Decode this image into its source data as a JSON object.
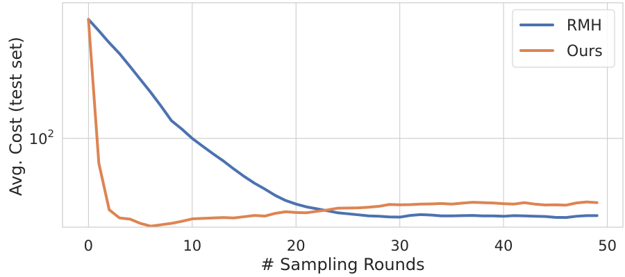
{
  "chart_data": {
    "type": "line",
    "title": "",
    "xlabel": "# Sampling Rounds",
    "ylabel": "Avg. Cost (test set)",
    "yscale": "log",
    "xlim": [
      -2.5,
      51.5
    ],
    "ylim": [
      34,
      520
    ],
    "grid": true,
    "legend_position": "top-right",
    "x_ticks": [
      0,
      10,
      20,
      30,
      40,
      50
    ],
    "y_ticks": [
      {
        "value": 100,
        "base": "10",
        "exp": "2"
      }
    ],
    "x": [
      0,
      1,
      2,
      3,
      4,
      5,
      6,
      7,
      8,
      9,
      10,
      11,
      12,
      13,
      14,
      15,
      16,
      17,
      18,
      19,
      20,
      21,
      22,
      23,
      24,
      25,
      26,
      27,
      28,
      29,
      30,
      31,
      32,
      33,
      34,
      35,
      36,
      37,
      38,
      39,
      40,
      41,
      42,
      43,
      44,
      45,
      46,
      47,
      48,
      49
    ],
    "series": [
      {
        "name": "RMH",
        "color": "#4c72b0",
        "values": [
          425,
          370,
          320,
          280,
          240,
          205,
          175,
          148,
          124,
          112,
          100,
          91,
          83,
          76,
          69,
          63,
          58,
          54,
          50,
          47,
          45,
          43.5,
          42.5,
          41.5,
          40.5,
          40,
          39.5,
          39,
          38.8,
          38.5,
          38.4,
          39.2,
          39.6,
          39.4,
          39.0,
          39.0,
          39.1,
          39.2,
          39.0,
          39.0,
          38.8,
          39.1,
          39.0,
          38.8,
          38.7,
          38.3,
          38.2,
          38.8,
          39.1,
          39.1
        ]
      },
      {
        "name": "Ours",
        "color": "#dd8452",
        "values": [
          425,
          74,
          42,
          38,
          37.5,
          35.6,
          34.4,
          35.0,
          35.6,
          36.5,
          37.6,
          37.8,
          38.0,
          38.2,
          38.0,
          38.6,
          39.2,
          38.9,
          40.2,
          41.0,
          40.6,
          40.5,
          41.2,
          41.9,
          42.8,
          42.9,
          43.0,
          43.3,
          43.8,
          44.8,
          44.6,
          44.7,
          45.0,
          45.1,
          45.3,
          45.0,
          45.5,
          46.0,
          45.8,
          45.6,
          45.2,
          45.0,
          45.8,
          45.0,
          44.5,
          44.6,
          44.4,
          45.6,
          46.2,
          45.8
        ]
      }
    ]
  }
}
